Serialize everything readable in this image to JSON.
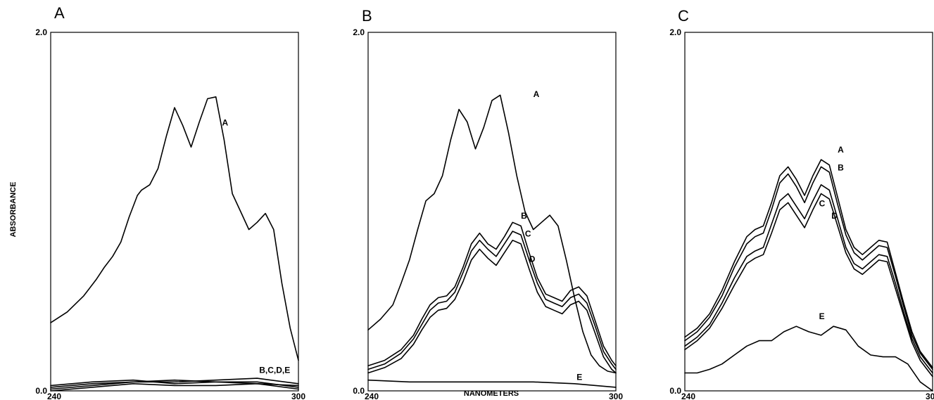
{
  "chart_data": [
    {
      "type": "line",
      "panel_label": "A",
      "xlabel": "NANOMETERS",
      "ylabel": "ABSORBANCE",
      "xlim": [
        240,
        300
      ],
      "ylim": [
        0.0,
        2.0
      ],
      "x_ticks": [
        "240",
        "300"
      ],
      "y_ticks": [
        "0.0",
        "2.0"
      ],
      "grid": false,
      "series": [
        {
          "name": "A",
          "x": [
            240,
            244,
            248,
            251,
            253,
            255,
            257,
            259,
            261,
            262,
            264,
            266,
            268,
            270,
            272,
            274,
            276,
            278,
            280,
            282,
            284,
            286,
            288,
            290,
            292,
            294,
            296,
            298,
            300
          ],
          "y": [
            0.38,
            0.44,
            0.53,
            0.62,
            0.69,
            0.75,
            0.83,
            0.97,
            1.09,
            1.12,
            1.15,
            1.24,
            1.42,
            1.58,
            1.48,
            1.36,
            1.5,
            1.63,
            1.64,
            1.4,
            1.1,
            1.0,
            0.9,
            0.94,
            0.99,
            0.9,
            0.6,
            0.35,
            0.17
          ]
        },
        {
          "name": "B",
          "x": [
            240,
            250,
            260,
            270,
            280,
            290,
            300
          ],
          "y": [
            0.02,
            0.04,
            0.05,
            0.05,
            0.06,
            0.07,
            0.04
          ]
        },
        {
          "name": "C",
          "x": [
            240,
            250,
            260,
            270,
            280,
            290,
            300
          ],
          "y": [
            0.01,
            0.03,
            0.05,
            0.06,
            0.05,
            0.04,
            0.03
          ]
        },
        {
          "name": "D",
          "x": [
            240,
            250,
            260,
            270,
            280,
            290,
            300
          ],
          "y": [
            0.03,
            0.05,
            0.06,
            0.04,
            0.05,
            0.05,
            0.02
          ]
        },
        {
          "name": "E",
          "x": [
            240,
            250,
            260,
            270,
            280,
            290,
            300
          ],
          "y": [
            0.0,
            0.02,
            0.04,
            0.03,
            0.03,
            0.04,
            0.01
          ]
        }
      ],
      "annotations": [
        {
          "text": "A",
          "x": 281.5,
          "y": 1.48
        },
        {
          "text": "B,C,D,E",
          "x": 290.5,
          "y": 0.1
        }
      ]
    },
    {
      "type": "line",
      "panel_label": "B",
      "xlabel": "NANOMETERS",
      "ylabel": "ABSORBANCE",
      "xlim": [
        240,
        300
      ],
      "ylim": [
        0.0,
        2.0
      ],
      "x_ticks": [
        "240",
        "300"
      ],
      "y_ticks": [
        "0.0",
        "2.0"
      ],
      "grid": false,
      "series": [
        {
          "name": "A",
          "x": [
            240,
            243,
            246,
            248,
            250,
            252,
            254,
            256,
            258,
            260,
            262,
            264,
            266,
            268,
            270,
            272,
            274,
            276,
            278,
            280,
            282,
            284,
            286,
            288,
            290,
            292,
            294,
            296,
            298,
            300
          ],
          "y": [
            0.34,
            0.4,
            0.48,
            0.6,
            0.73,
            0.9,
            1.06,
            1.1,
            1.2,
            1.4,
            1.57,
            1.5,
            1.35,
            1.47,
            1.62,
            1.65,
            1.44,
            1.2,
            1.0,
            0.9,
            0.94,
            0.98,
            0.92,
            0.73,
            0.52,
            0.33,
            0.2,
            0.14,
            0.11,
            0.1
          ]
        },
        {
          "name": "B",
          "x": [
            240,
            244,
            248,
            251,
            253,
            255,
            257,
            259,
            261,
            263,
            265,
            267,
            269,
            271,
            273,
            275,
            277,
            279,
            281,
            283,
            285,
            287,
            289,
            291,
            293,
            295,
            297,
            299,
            300
          ],
          "y": [
            0.14,
            0.17,
            0.23,
            0.31,
            0.4,
            0.48,
            0.52,
            0.53,
            0.58,
            0.69,
            0.82,
            0.88,
            0.82,
            0.79,
            0.86,
            0.94,
            0.92,
            0.77,
            0.63,
            0.54,
            0.52,
            0.5,
            0.56,
            0.58,
            0.53,
            0.39,
            0.25,
            0.17,
            0.14
          ]
        },
        {
          "name": "C",
          "x": [
            240,
            244,
            248,
            251,
            253,
            255,
            257,
            259,
            261,
            263,
            265,
            267,
            269,
            271,
            273,
            275,
            277,
            279,
            281,
            283,
            285,
            287,
            289,
            291,
            293,
            295,
            297,
            299,
            300
          ],
          "y": [
            0.12,
            0.15,
            0.21,
            0.29,
            0.37,
            0.45,
            0.49,
            0.5,
            0.55,
            0.66,
            0.78,
            0.84,
            0.79,
            0.75,
            0.82,
            0.89,
            0.87,
            0.73,
            0.6,
            0.51,
            0.49,
            0.47,
            0.52,
            0.54,
            0.49,
            0.36,
            0.22,
            0.15,
            0.12
          ]
        },
        {
          "name": "D",
          "x": [
            240,
            244,
            248,
            251,
            253,
            255,
            257,
            259,
            261,
            263,
            265,
            267,
            269,
            271,
            273,
            275,
            277,
            279,
            281,
            283,
            285,
            287,
            289,
            291,
            293,
            295,
            297,
            299,
            300
          ],
          "y": [
            0.1,
            0.13,
            0.18,
            0.26,
            0.34,
            0.41,
            0.45,
            0.46,
            0.51,
            0.61,
            0.73,
            0.79,
            0.74,
            0.7,
            0.77,
            0.84,
            0.82,
            0.68,
            0.55,
            0.47,
            0.45,
            0.43,
            0.48,
            0.5,
            0.45,
            0.32,
            0.19,
            0.12,
            0.1
          ]
        },
        {
          "name": "E",
          "x": [
            240,
            250,
            260,
            270,
            280,
            290,
            300
          ],
          "y": [
            0.06,
            0.05,
            0.05,
            0.05,
            0.05,
            0.04,
            0.02
          ]
        }
      ],
      "annotations": [
        {
          "text": "A",
          "x": 280.0,
          "y": 1.64
        },
        {
          "text": "B",
          "x": 277.0,
          "y": 0.96
        },
        {
          "text": "C",
          "x": 278.0,
          "y": 0.86
        },
        {
          "text": "D",
          "x": 279.0,
          "y": 0.72
        },
        {
          "text": "E",
          "x": 290.5,
          "y": 0.06
        }
      ]
    },
    {
      "type": "line",
      "panel_label": "C",
      "xlabel": "NANOMETERS",
      "ylabel": "ABSORBANCE",
      "xlim": [
        240,
        300
      ],
      "ylim": [
        0.0,
        2.0
      ],
      "x_ticks": [
        "240",
        "300"
      ],
      "y_ticks": [
        "0.0",
        "2.0"
      ],
      "grid": false,
      "series": [
        {
          "name": "A",
          "x": [
            240,
            243,
            246,
            249,
            252,
            255,
            257,
            259,
            261,
            263,
            265,
            267,
            269,
            271,
            273,
            275,
            277,
            279,
            281,
            283,
            285,
            287,
            289,
            291,
            293,
            295,
            297,
            299,
            300
          ],
          "y": [
            0.3,
            0.35,
            0.43,
            0.56,
            0.72,
            0.86,
            0.9,
            0.92,
            1.05,
            1.2,
            1.25,
            1.18,
            1.09,
            1.2,
            1.29,
            1.26,
            1.08,
            0.9,
            0.8,
            0.76,
            0.8,
            0.84,
            0.83,
            0.66,
            0.49,
            0.33,
            0.22,
            0.16,
            0.13
          ]
        },
        {
          "name": "B",
          "x": [
            240,
            243,
            246,
            249,
            252,
            255,
            257,
            259,
            261,
            263,
            265,
            267,
            269,
            271,
            273,
            275,
            277,
            279,
            281,
            283,
            285,
            287,
            289,
            291,
            293,
            295,
            297,
            299,
            300
          ],
          "y": [
            0.28,
            0.33,
            0.41,
            0.53,
            0.69,
            0.82,
            0.86,
            0.88,
            1.01,
            1.16,
            1.21,
            1.14,
            1.05,
            1.16,
            1.25,
            1.22,
            1.04,
            0.87,
            0.77,
            0.73,
            0.77,
            0.81,
            0.8,
            0.64,
            0.47,
            0.31,
            0.21,
            0.15,
            0.12
          ]
        },
        {
          "name": "C",
          "x": [
            240,
            243,
            246,
            249,
            252,
            255,
            257,
            259,
            261,
            263,
            265,
            267,
            269,
            271,
            273,
            275,
            277,
            279,
            281,
            283,
            285,
            287,
            289,
            291,
            293,
            295,
            297,
            299,
            300
          ],
          "y": [
            0.25,
            0.3,
            0.37,
            0.49,
            0.63,
            0.75,
            0.78,
            0.8,
            0.93,
            1.06,
            1.1,
            1.03,
            0.96,
            1.06,
            1.15,
            1.12,
            0.96,
            0.8,
            0.71,
            0.68,
            0.72,
            0.76,
            0.75,
            0.6,
            0.44,
            0.29,
            0.19,
            0.13,
            0.1
          ]
        },
        {
          "name": "D",
          "x": [
            240,
            243,
            246,
            249,
            252,
            255,
            257,
            259,
            261,
            263,
            265,
            267,
            269,
            271,
            273,
            275,
            277,
            279,
            281,
            283,
            285,
            287,
            289,
            291,
            293,
            295,
            297,
            299,
            300
          ],
          "y": [
            0.23,
            0.28,
            0.35,
            0.46,
            0.59,
            0.71,
            0.74,
            0.76,
            0.88,
            1.01,
            1.05,
            0.98,
            0.91,
            1.01,
            1.1,
            1.07,
            0.92,
            0.77,
            0.68,
            0.65,
            0.69,
            0.73,
            0.72,
            0.57,
            0.42,
            0.27,
            0.17,
            0.11,
            0.08
          ]
        },
        {
          "name": "E",
          "x": [
            240,
            243,
            246,
            249,
            252,
            255,
            258,
            261,
            264,
            267,
            270,
            273,
            276,
            279,
            282,
            285,
            288,
            291,
            294,
            297,
            300
          ],
          "y": [
            0.1,
            0.1,
            0.12,
            0.15,
            0.2,
            0.25,
            0.28,
            0.28,
            0.33,
            0.36,
            0.33,
            0.31,
            0.36,
            0.34,
            0.25,
            0.2,
            0.19,
            0.19,
            0.15,
            0.05,
            0.0
          ]
        }
      ],
      "annotations": [
        {
          "text": "A",
          "x": 277.0,
          "y": 1.33
        },
        {
          "text": "B",
          "x": 277.0,
          "y": 1.23
        },
        {
          "text": "C",
          "x": 272.5,
          "y": 1.03
        },
        {
          "text": "D",
          "x": 275.5,
          "y": 0.96
        },
        {
          "text": "E",
          "x": 272.5,
          "y": 0.4
        }
      ]
    }
  ]
}
